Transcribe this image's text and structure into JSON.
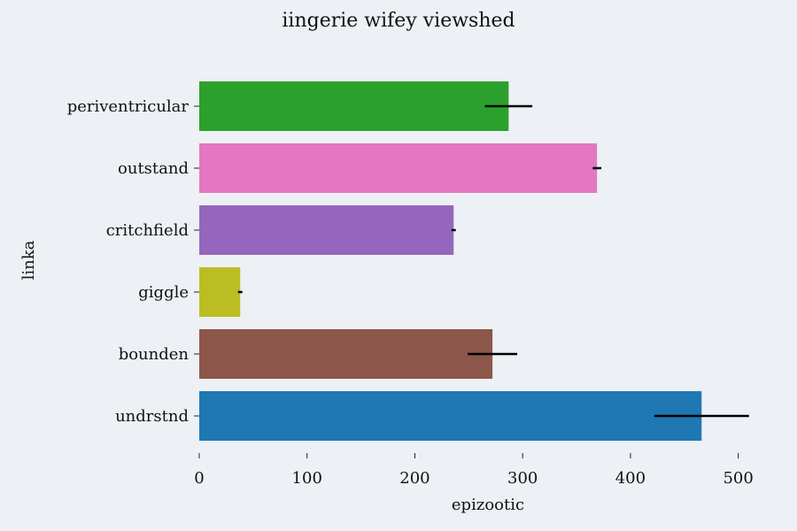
{
  "chart_data": {
    "type": "bar",
    "orientation": "horizontal",
    "title": "iingerie wifey viewshed",
    "xlabel": "epizootic",
    "ylabel": "linka",
    "xlim": [
      0,
      520
    ],
    "xticks": [
      0,
      100,
      200,
      300,
      400,
      500
    ],
    "grid": false,
    "categories": [
      "periventricular",
      "outstand",
      "critchfield",
      "giggle",
      "bounden",
      "undrstnd"
    ],
    "values": [
      287,
      369,
      236,
      38,
      272,
      466
    ],
    "errors": [
      22,
      4,
      2,
      2,
      23,
      44
    ],
    "colors": [
      "#2ca02c",
      "#e377c2",
      "#9467bd",
      "#bcbd22",
      "#8c564b",
      "#1f77b4"
    ]
  }
}
